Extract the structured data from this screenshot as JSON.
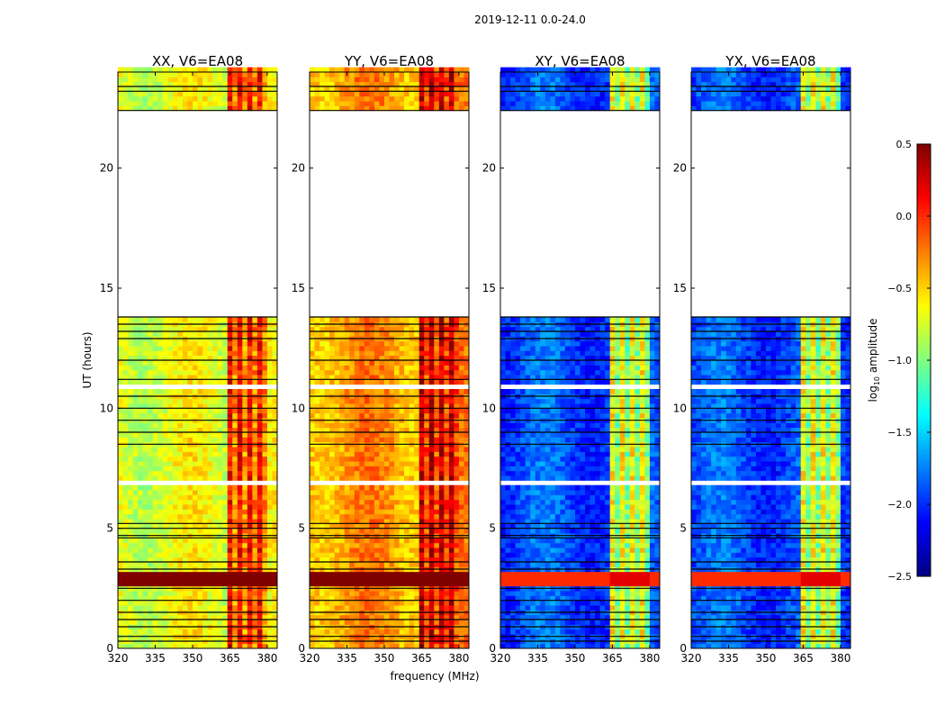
{
  "chart_data": {
    "type": "heatmap",
    "title": "2019-12-11 0.0-24.0",
    "xlabel": "frequency (MHz)",
    "ylabel": "UT (hours)",
    "xlim": [
      320,
      384
    ],
    "ylim": [
      0,
      24
    ],
    "xticks": [
      "320",
      "335",
      "350",
      "365",
      "380"
    ],
    "yticks": [
      "0",
      "5",
      "10",
      "15",
      "20"
    ],
    "colorbar": {
      "label": "log10 amplitude",
      "label_main": "log",
      "label_sub": "10",
      "label_rest": " amplitude",
      "range": [
        -2.5,
        0.5
      ],
      "ticks": [
        "0.5",
        "0.0",
        "−0.5",
        "−1.0",
        "−1.5",
        "−2.0",
        "−2.5"
      ],
      "colormap": "jet"
    },
    "panels": [
      {
        "title": "XX, V6=EA08",
        "base": -0.7,
        "rfi": 0.1,
        "strong": 0.5
      },
      {
        "title": "YY, V6=EA08",
        "base": -0.35,
        "rfi": 0.3,
        "strong": 0.5
      },
      {
        "title": "XY, V6=EA08",
        "base": -1.9,
        "rfi": -0.6,
        "strong": 0.0
      },
      {
        "title": "YX, V6=EA08",
        "base": -1.9,
        "rfi": -0.6,
        "strong": 0.0
      }
    ],
    "rfi_band_mhz": [
      363,
      380
    ],
    "strong_band_hours": [
      2.5,
      3.2
    ],
    "no_data_hours": [
      [
        13.8,
        22.4
      ],
      [
        10.85,
        10.95
      ],
      [
        6.85,
        6.95
      ]
    ],
    "flag_lines_hours": [
      0.3,
      0.5,
      0.9,
      1.2,
      1.5,
      2.0,
      2.5,
      3.3,
      3.6,
      4.6,
      4.7,
      5.0,
      5.2,
      8.5,
      9.0,
      9.5,
      10.0,
      10.5,
      11.2,
      12.0,
      12.9,
      13.2,
      13.5,
      13.8,
      22.4,
      23.2,
      23.4
    ]
  }
}
